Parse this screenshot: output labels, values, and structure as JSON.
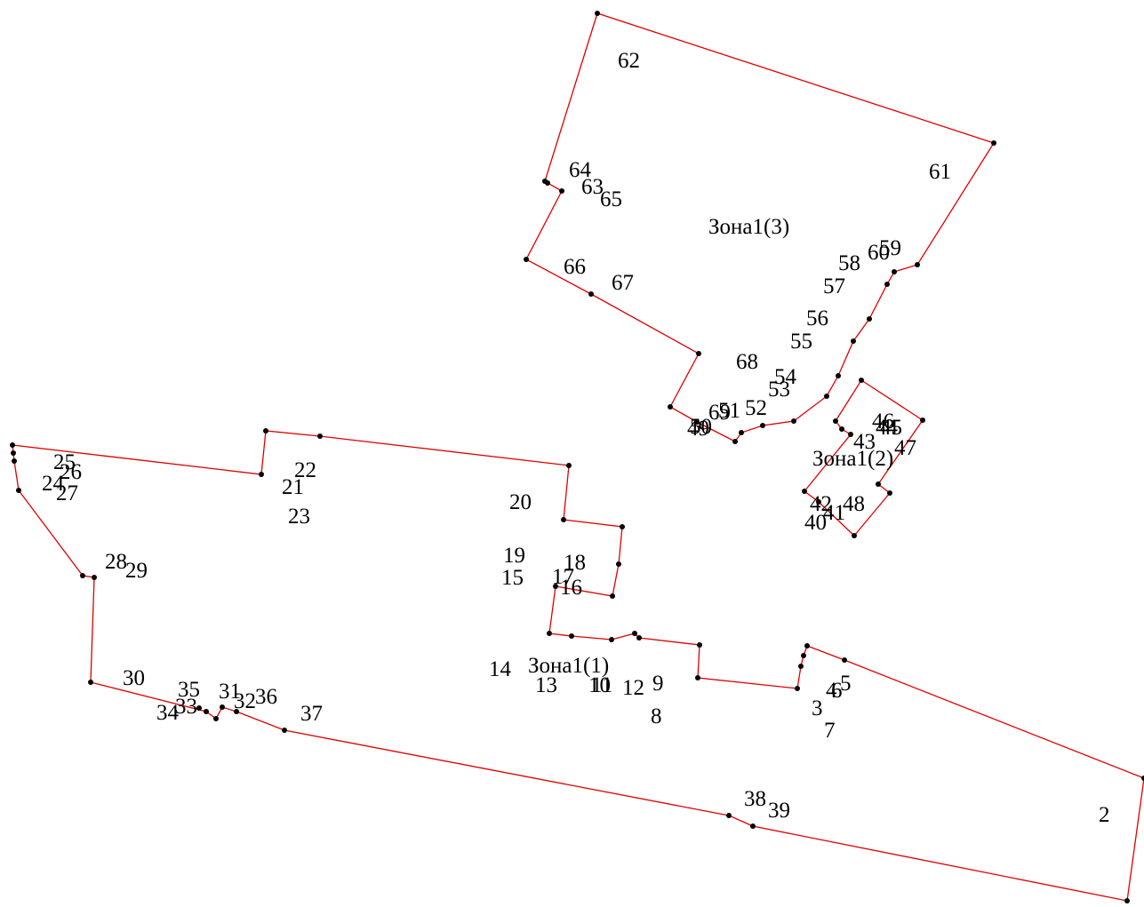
{
  "line_color": "#e00000",
  "vertex_color": "#000000",
  "zones": [
    {
      "name": "Зона1(1)",
      "points": [
        {
          "label": "1"
        },
        {
          "label": "2"
        },
        {
          "label": "3"
        },
        {
          "label": "4"
        },
        {
          "label": "5"
        },
        {
          "label": "6"
        },
        {
          "label": "7"
        },
        {
          "label": "8"
        },
        {
          "label": "9"
        },
        {
          "label": "10"
        },
        {
          "label": "11"
        },
        {
          "label": "12"
        },
        {
          "label": "13"
        },
        {
          "label": "14"
        },
        {
          "label": "15"
        },
        {
          "label": "16"
        },
        {
          "label": "17"
        },
        {
          "label": "18"
        },
        {
          "label": "19"
        },
        {
          "label": "20"
        },
        {
          "label": "21"
        },
        {
          "label": "22"
        },
        {
          "label": "23"
        },
        {
          "label": "24"
        },
        {
          "label": "25"
        },
        {
          "label": "26"
        },
        {
          "label": "27"
        },
        {
          "label": "28"
        },
        {
          "label": "29"
        },
        {
          "label": "30"
        },
        {
          "label": "31"
        },
        {
          "label": "32"
        },
        {
          "label": "33"
        },
        {
          "label": "34"
        },
        {
          "label": "35"
        },
        {
          "label": "36"
        },
        {
          "label": "37"
        },
        {
          "label": "38"
        },
        {
          "label": "39"
        }
      ]
    },
    {
      "name": "Зона1(2)",
      "points": [
        {
          "label": "40"
        },
        {
          "label": "41"
        },
        {
          "label": "42"
        },
        {
          "label": "43"
        },
        {
          "label": "44"
        },
        {
          "label": "45"
        },
        {
          "label": "46"
        },
        {
          "label": "47"
        },
        {
          "label": "48"
        }
      ]
    },
    {
      "name": "Зона1(3)",
      "points": [
        {
          "label": "49"
        },
        {
          "label": "50"
        },
        {
          "label": "51"
        },
        {
          "label": "52"
        },
        {
          "label": "53"
        },
        {
          "label": "54"
        },
        {
          "label": "55"
        },
        {
          "label": "56"
        },
        {
          "label": "57"
        },
        {
          "label": "58"
        },
        {
          "label": "59"
        },
        {
          "label": "60"
        },
        {
          "label": "61"
        },
        {
          "label": "62"
        },
        {
          "label": "63"
        },
        {
          "label": "64"
        },
        {
          "label": "65"
        },
        {
          "label": "66"
        },
        {
          "label": "67"
        },
        {
          "label": "68"
        },
        {
          "label": "69"
        }
      ]
    }
  ]
}
